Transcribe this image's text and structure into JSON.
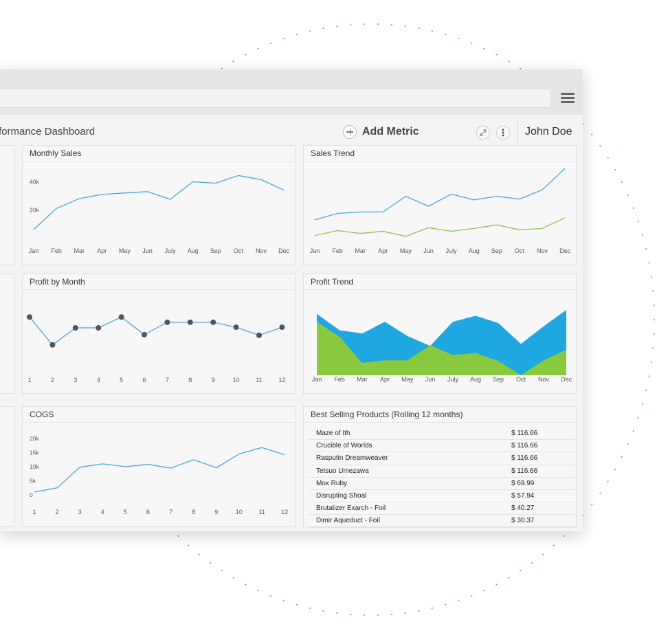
{
  "dashboard": {
    "title": "formance Dashboard"
  },
  "toolbar": {
    "add_metric_label": "Add Metric",
    "user_name": "John Doe",
    "expand_icon": "expand-icon",
    "more_icon": "more-vertical-icon",
    "menu_icon": "hamburger-menu-icon"
  },
  "colors": {
    "blue": "#4aa7d8",
    "area_blue": "#1ea7e1",
    "green": "#8bc34a",
    "area_green": "#88c940",
    "marker": "#555555",
    "dots": "#4aa7d8"
  },
  "panels": {
    "monthly_sales": {
      "title": "Monthly Sales"
    },
    "sales_trend": {
      "title": "Sales Trend"
    },
    "profit_by_month": {
      "title": "Profit by Month"
    },
    "profit_trend": {
      "title": "Profit Trend"
    },
    "cogs": {
      "title": "COGS"
    },
    "best_selling": {
      "title": "Best Selling Products (Rolling 12 months)",
      "rows": [
        {
          "name": "Maze of Ith",
          "price": "$ 116.66"
        },
        {
          "name": "Crucible of Worlds",
          "price": "$ 116.66"
        },
        {
          "name": "Rasputin Dreamweaver",
          "price": "$ 116.66"
        },
        {
          "name": "Tetsuo Umezawa",
          "price": "$ 116.66"
        },
        {
          "name": "Mox Ruby",
          "price": "$ 69.99"
        },
        {
          "name": "Disrupting Shoal",
          "price": "$ 57.94"
        },
        {
          "name": "Brutalizer Exarch - Foil",
          "price": "$ 40.27"
        },
        {
          "name": "Dimir Aqueduct - Foil",
          "price": "$ 30.37"
        }
      ]
    }
  },
  "chart_data": [
    {
      "id": "monthly_sales",
      "type": "line",
      "categories": [
        "Jan",
        "Feb",
        "Mar",
        "Apr",
        "May",
        "Jun",
        "July",
        "Aug",
        "Sep",
        "Oct",
        "Nov",
        "Dec"
      ],
      "yticks": [
        "20k",
        "40k"
      ],
      "ylim": [
        6000,
        50000
      ],
      "series": [
        {
          "values": [
            6000,
            21000,
            28000,
            31000,
            32000,
            33000,
            27500,
            40000,
            39000,
            44500,
            41500,
            34000
          ]
        }
      ]
    },
    {
      "id": "sales_trend",
      "type": "line",
      "categories": [
        "Jan",
        "Feb",
        "Mar",
        "Apr",
        "May",
        "Jun",
        "July",
        "Aug",
        "Sep",
        "Oct",
        "Nov",
        "Dec"
      ],
      "ylim": [
        0,
        100
      ],
      "series": [
        {
          "color": "blue",
          "values": [
            28,
            37,
            39,
            39,
            61,
            47,
            64,
            56,
            61,
            57,
            70,
            100
          ]
        },
        {
          "color": "green",
          "values": [
            6,
            13,
            9,
            12,
            5,
            17,
            12,
            16,
            21,
            14,
            16,
            31
          ]
        }
      ]
    },
    {
      "id": "profit_by_month",
      "type": "line",
      "categories": [
        "1",
        "2",
        "3",
        "4",
        "5",
        "6",
        "7",
        "8",
        "9",
        "10",
        "11",
        "12"
      ],
      "ylim": [
        0,
        100
      ],
      "series": [
        {
          "values": [
            95,
            5,
            60,
            60,
            95,
            38,
            78,
            78,
            78,
            62,
            36,
            62
          ]
        }
      ]
    },
    {
      "id": "profit_trend",
      "type": "area",
      "categories": [
        "Jan",
        "Feb",
        "Mar",
        "Apr",
        "May",
        "Jun",
        "July",
        "Aug",
        "Sep",
        "Oct",
        "Nov",
        "Dec"
      ],
      "ylim": [
        0,
        100
      ],
      "series": [
        {
          "color": "area_blue",
          "values": [
            94,
            69,
            64,
            82,
            60,
            45,
            82,
            91,
            80,
            48,
            75,
            100
          ]
        },
        {
          "color": "area_green",
          "values": [
            82,
            59,
            19,
            23,
            23,
            46,
            31,
            34,
            22,
            0,
            23,
            39
          ]
        }
      ]
    },
    {
      "id": "cogs",
      "type": "line",
      "categories": [
        "1",
        "2",
        "3",
        "4",
        "5",
        "6",
        "7",
        "8",
        "9",
        "10",
        "11",
        "12"
      ],
      "yticks": [
        "0",
        "5k",
        "10k",
        "15k",
        "20k"
      ],
      "ylim": [
        0,
        20000
      ],
      "series": [
        {
          "values": [
            1000,
            2500,
            9800,
            11000,
            10000,
            10800,
            9500,
            12500,
            9600,
            14500,
            16800,
            14200
          ]
        }
      ]
    }
  ]
}
